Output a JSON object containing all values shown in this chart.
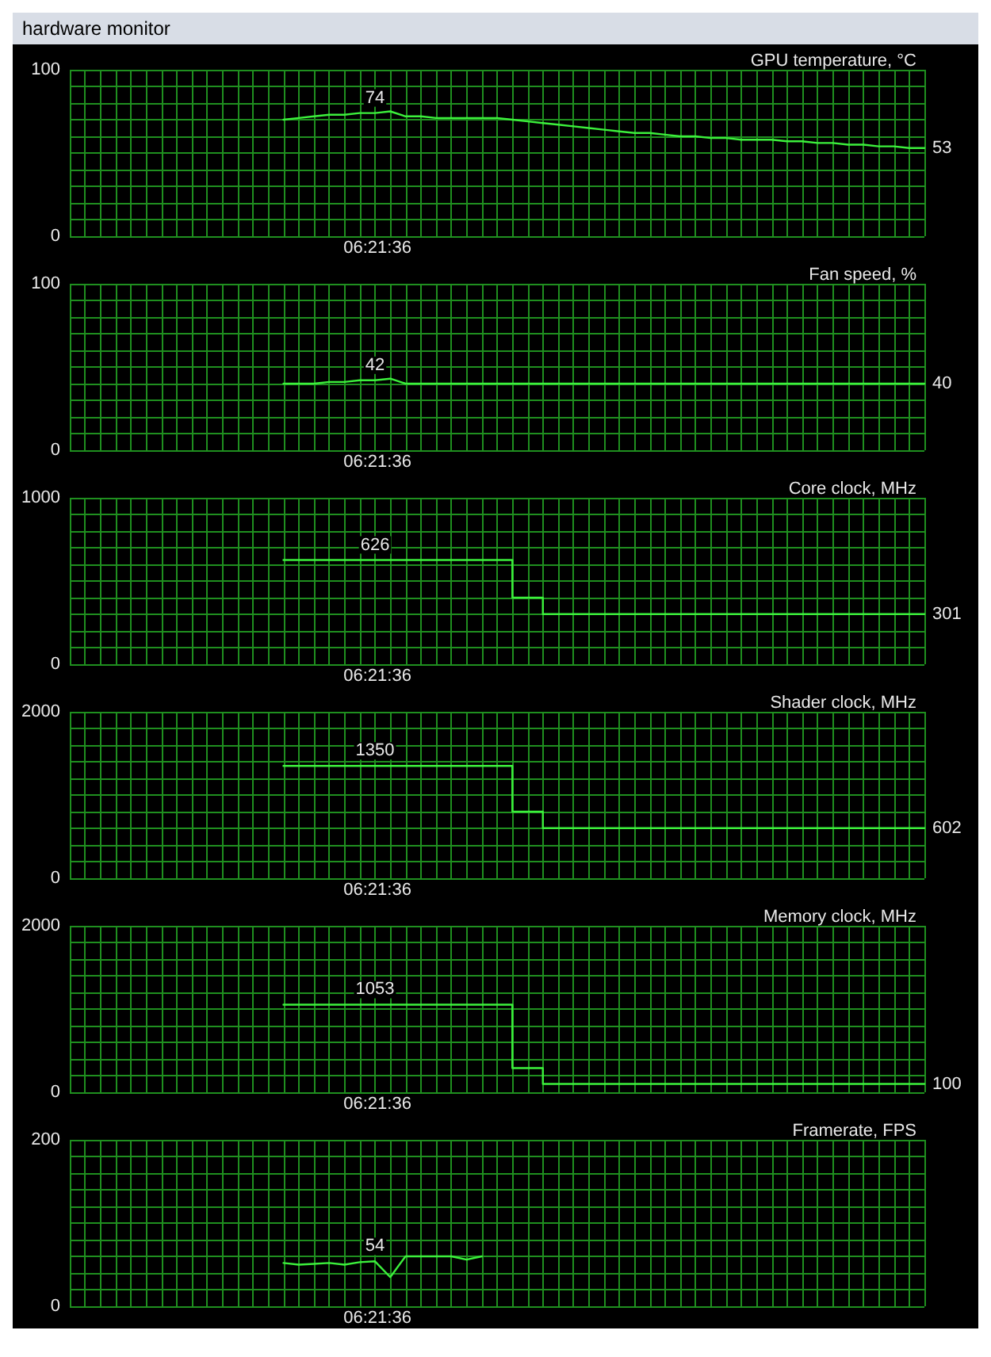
{
  "chart_data": [
    {
      "type": "line",
      "title": "GPU temperature, °C",
      "xlabel": "06:21:36",
      "annotations": [
        "hardware monitor"
      ],
      "color": "#3cf03c",
      "grid": true,
      "ylim": [
        0,
        100
      ],
      "yticks": [
        0,
        {
          "value": 10,
          "label": null
        },
        {
          "value": 20,
          "label": null
        },
        {
          "value": 30,
          "label": null
        },
        {
          "value": 40,
          "label": null
        },
        {
          "value": 50,
          "label": null
        },
        {
          "value": 60,
          "label": null
        },
        {
          "value": 70,
          "label": null
        },
        {
          "value": 80,
          "label": null
        },
        {
          "value": 90,
          "label": null
        },
        100
      ],
      "categories": [
        null,
        null,
        null,
        null,
        null,
        null,
        null,
        null,
        null,
        null,
        null,
        null,
        null,
        null,
        null,
        null,
        null,
        null,
        null,
        null,
        null,
        null,
        null,
        null,
        null,
        null,
        null,
        null,
        null,
        null,
        null,
        null,
        null,
        null,
        null,
        null,
        null,
        null,
        null,
        null,
        null,
        null,
        null,
        null,
        null,
        null,
        null,
        null,
        null,
        null,
        null,
        null,
        null,
        null,
        null,
        null,
        null
      ],
      "values": [
        null,
        null,
        null,
        null,
        null,
        null,
        null,
        null,
        null,
        null,
        null,
        null,
        null,
        null,
        70,
        71,
        72,
        73,
        73,
        74,
        74,
        75,
        72,
        72,
        71,
        71,
        71,
        71,
        71,
        70,
        69,
        68,
        67,
        66,
        65,
        64,
        63,
        62,
        62,
        61,
        60,
        60,
        59,
        59,
        58,
        58,
        58,
        57,
        57,
        56,
        56,
        55,
        55,
        54,
        54,
        53,
        53
      ],
      "value_labels": [
        null,
        null,
        null,
        null,
        null,
        null,
        null,
        null,
        null,
        null,
        null,
        null,
        null,
        null,
        null,
        null,
        null,
        null,
        null,
        null,
        "74",
        null,
        null,
        null,
        null,
        null,
        null,
        null,
        null,
        null,
        null,
        null,
        null,
        null,
        null,
        null,
        null,
        null,
        null,
        null,
        null,
        null,
        null,
        null,
        null,
        null,
        null,
        null,
        null,
        null,
        null,
        null,
        null,
        null,
        null,
        null,
        "53"
      ]
    },
    {
      "type": "line",
      "title": "Fan speed, %",
      "xlabel": "06:21:36",
      "color": "#3cf03c",
      "grid": true,
      "ylim": [
        0,
        100
      ],
      "yticks": [
        0,
        {
          "value": 10,
          "label": null
        },
        {
          "value": 20,
          "label": null
        },
        {
          "value": 30,
          "label": null
        },
        {
          "value": 40,
          "label": null
        },
        {
          "value": 50,
          "label": null
        },
        {
          "value": 60,
          "label": null
        },
        {
          "value": 70,
          "label": null
        },
        {
          "value": 80,
          "label": null
        },
        {
          "value": 90,
          "label": null
        },
        100
      ],
      "categories": [
        null,
        null,
        null,
        null,
        null,
        null,
        null,
        null,
        null,
        null,
        null,
        null,
        null,
        null,
        null,
        null,
        null,
        null,
        null,
        null,
        null,
        null,
        null,
        null,
        null,
        null,
        null,
        null,
        null,
        null,
        null,
        null,
        null,
        null,
        null,
        null,
        null,
        null,
        null,
        null,
        null,
        null,
        null,
        null,
        null,
        null,
        null,
        null,
        null,
        null,
        null,
        null,
        null,
        null,
        null,
        null,
        null
      ],
      "values": [
        null,
        null,
        null,
        null,
        null,
        null,
        null,
        null,
        null,
        null,
        null,
        null,
        null,
        null,
        40,
        40,
        40,
        41,
        41,
        42,
        42,
        43,
        40,
        40,
        40,
        40,
        40,
        40,
        40,
        40,
        40,
        40,
        40,
        40,
        40,
        40,
        40,
        40,
        40,
        40,
        40,
        40,
        40,
        40,
        40,
        40,
        40,
        40,
        40,
        40,
        40,
        40,
        40,
        40,
        40,
        40,
        40
      ],
      "value_labels": [
        null,
        null,
        null,
        null,
        null,
        null,
        null,
        null,
        null,
        null,
        null,
        null,
        null,
        null,
        null,
        null,
        null,
        null,
        null,
        null,
        "42",
        null,
        null,
        null,
        null,
        null,
        null,
        null,
        null,
        null,
        null,
        null,
        null,
        null,
        null,
        null,
        null,
        null,
        null,
        null,
        null,
        null,
        null,
        null,
        null,
        null,
        null,
        null,
        null,
        null,
        null,
        null,
        null,
        null,
        null,
        null,
        "40"
      ]
    },
    {
      "type": "step",
      "title": "Core clock, MHz",
      "xlabel": "06:21:36",
      "color": "#3cf03c",
      "grid": true,
      "ylim": [
        0,
        1000
      ],
      "yticks": [
        0,
        {
          "value": 100,
          "label": null
        },
        {
          "value": 200,
          "label": null
        },
        {
          "value": 300,
          "label": null
        },
        {
          "value": 400,
          "label": null
        },
        {
          "value": 500,
          "label": null
        },
        {
          "value": 600,
          "label": null
        },
        {
          "value": 700,
          "label": null
        },
        {
          "value": 800,
          "label": null
        },
        {
          "value": 900,
          "label": null
        },
        1000
      ],
      "categories": [
        null,
        null,
        null,
        null,
        null,
        null,
        null,
        null,
        null,
        null,
        null,
        null,
        null,
        null,
        null,
        null,
        null,
        null,
        null,
        null,
        null,
        null,
        null,
        null,
        null,
        null,
        null,
        null,
        null,
        null,
        null,
        null,
        null,
        null,
        null,
        null,
        null,
        null,
        null,
        null,
        null,
        null,
        null,
        null,
        null,
        null,
        null,
        null,
        null,
        null,
        null,
        null,
        null,
        null,
        null,
        null,
        null
      ],
      "values": [
        null,
        null,
        null,
        null,
        null,
        null,
        null,
        null,
        null,
        null,
        null,
        null,
        null,
        null,
        626,
        626,
        626,
        626,
        626,
        626,
        626,
        626,
        626,
        626,
        626,
        626,
        626,
        626,
        626,
        400,
        400,
        301,
        301,
        301,
        301,
        301,
        301,
        301,
        301,
        301,
        301,
        301,
        301,
        301,
        301,
        301,
        301,
        301,
        301,
        301,
        301,
        301,
        301,
        301,
        301,
        301,
        301
      ],
      "value_labels": [
        null,
        null,
        null,
        null,
        null,
        null,
        null,
        null,
        null,
        null,
        null,
        null,
        null,
        null,
        null,
        null,
        null,
        null,
        null,
        null,
        "626",
        null,
        null,
        null,
        null,
        null,
        null,
        null,
        null,
        null,
        null,
        null,
        null,
        null,
        null,
        null,
        null,
        null,
        null,
        null,
        null,
        null,
        null,
        null,
        null,
        null,
        null,
        null,
        null,
        null,
        null,
        null,
        null,
        null,
        null,
        null,
        "301"
      ]
    },
    {
      "type": "step",
      "title": "Shader clock, MHz",
      "xlabel": "06:21:36",
      "color": "#3cf03c",
      "grid": true,
      "ylim": [
        0,
        2000
      ],
      "yticks": [
        0,
        {
          "value": 200,
          "label": null
        },
        {
          "value": 400,
          "label": null
        },
        {
          "value": 600,
          "label": null
        },
        {
          "value": 800,
          "label": null
        },
        {
          "value": 1000,
          "label": null
        },
        {
          "value": 1200,
          "label": null
        },
        {
          "value": 1400,
          "label": null
        },
        {
          "value": 1600,
          "label": null
        },
        {
          "value": 1800,
          "label": null
        },
        2000
      ],
      "categories": [
        null,
        null,
        null,
        null,
        null,
        null,
        null,
        null,
        null,
        null,
        null,
        null,
        null,
        null,
        null,
        null,
        null,
        null,
        null,
        null,
        null,
        null,
        null,
        null,
        null,
        null,
        null,
        null,
        null,
        null,
        null,
        null,
        null,
        null,
        null,
        null,
        null,
        null,
        null,
        null,
        null,
        null,
        null,
        null,
        null,
        null,
        null,
        null,
        null,
        null,
        null,
        null,
        null,
        null,
        null,
        null,
        null
      ],
      "values": [
        null,
        null,
        null,
        null,
        null,
        null,
        null,
        null,
        null,
        null,
        null,
        null,
        null,
        null,
        1350,
        1350,
        1350,
        1350,
        1350,
        1350,
        1350,
        1350,
        1350,
        1350,
        1350,
        1350,
        1350,
        1350,
        1350,
        800,
        800,
        602,
        602,
        602,
        602,
        602,
        602,
        602,
        602,
        602,
        602,
        602,
        602,
        602,
        602,
        602,
        602,
        602,
        602,
        602,
        602,
        602,
        602,
        602,
        602,
        602,
        602
      ],
      "value_labels": [
        null,
        null,
        null,
        null,
        null,
        null,
        null,
        null,
        null,
        null,
        null,
        null,
        null,
        null,
        null,
        null,
        null,
        null,
        null,
        null,
        "1350",
        null,
        null,
        null,
        null,
        null,
        null,
        null,
        null,
        null,
        null,
        null,
        null,
        null,
        null,
        null,
        null,
        null,
        null,
        null,
        null,
        null,
        null,
        null,
        null,
        null,
        null,
        null,
        null,
        null,
        null,
        null,
        null,
        null,
        null,
        null,
        "602"
      ]
    },
    {
      "type": "step",
      "title": "Memory clock, MHz",
      "xlabel": "06:21:36",
      "color": "#3cf03c",
      "grid": true,
      "ylim": [
        0,
        2000
      ],
      "yticks": [
        0,
        {
          "value": 200,
          "label": null
        },
        {
          "value": 400,
          "label": null
        },
        {
          "value": 600,
          "label": null
        },
        {
          "value": 800,
          "label": null
        },
        {
          "value": 1000,
          "label": null
        },
        {
          "value": 1200,
          "label": null
        },
        {
          "value": 1400,
          "label": null
        },
        {
          "value": 1600,
          "label": null
        },
        {
          "value": 1800,
          "label": null
        },
        2000
      ],
      "categories": [
        null,
        null,
        null,
        null,
        null,
        null,
        null,
        null,
        null,
        null,
        null,
        null,
        null,
        null,
        null,
        null,
        null,
        null,
        null,
        null,
        null,
        null,
        null,
        null,
        null,
        null,
        null,
        null,
        null,
        null,
        null,
        null,
        null,
        null,
        null,
        null,
        null,
        null,
        null,
        null,
        null,
        null,
        null,
        null,
        null,
        null,
        null,
        null,
        null,
        null,
        null,
        null,
        null,
        null,
        null,
        null,
        null
      ],
      "values": [
        null,
        null,
        null,
        null,
        null,
        null,
        null,
        null,
        null,
        null,
        null,
        null,
        null,
        null,
        1053,
        1053,
        1053,
        1053,
        1053,
        1053,
        1053,
        1053,
        1053,
        1053,
        1053,
        1053,
        1053,
        1053,
        1053,
        290,
        290,
        100,
        100,
        100,
        100,
        100,
        100,
        100,
        100,
        100,
        100,
        100,
        100,
        100,
        100,
        100,
        100,
        100,
        100,
        100,
        100,
        100,
        100,
        100,
        100,
        100,
        100
      ],
      "value_labels": [
        null,
        null,
        null,
        null,
        null,
        null,
        null,
        null,
        null,
        null,
        null,
        null,
        null,
        null,
        null,
        null,
        null,
        null,
        null,
        null,
        "1053",
        null,
        null,
        null,
        null,
        null,
        null,
        null,
        null,
        null,
        null,
        null,
        null,
        null,
        null,
        null,
        null,
        null,
        null,
        null,
        null,
        null,
        null,
        null,
        null,
        null,
        null,
        null,
        null,
        null,
        null,
        null,
        null,
        null,
        null,
        null,
        "100"
      ]
    },
    {
      "type": "line",
      "title": "Framerate, FPS",
      "xlabel": "06:21:36",
      "color": "#3cf03c",
      "grid": true,
      "ylim": [
        0,
        200
      ],
      "yticks": [
        0,
        {
          "value": 20,
          "label": null
        },
        {
          "value": 40,
          "label": null
        },
        {
          "value": 60,
          "label": null
        },
        {
          "value": 80,
          "label": null
        },
        {
          "value": 100,
          "label": null
        },
        {
          "value": 120,
          "label": null
        },
        {
          "value": 140,
          "label": null
        },
        {
          "value": 160,
          "label": null
        },
        {
          "value": 180,
          "label": null
        },
        200
      ],
      "categories": [
        null,
        null,
        null,
        null,
        null,
        null,
        null,
        null,
        null,
        null,
        null,
        null,
        null,
        null,
        null,
        null,
        null,
        null,
        null,
        null,
        null,
        null,
        null,
        null,
        null,
        null,
        null,
        null,
        null,
        null,
        null,
        null,
        null,
        null,
        null,
        null,
        null,
        null,
        null,
        null,
        null,
        null,
        null,
        null,
        null,
        null,
        null,
        null,
        null,
        null,
        null,
        null,
        null,
        null,
        null,
        null,
        null
      ],
      "values": [
        null,
        null,
        null,
        null,
        null,
        null,
        null,
        null,
        null,
        null,
        null,
        null,
        null,
        null,
        52,
        50,
        51,
        52,
        50,
        53,
        54,
        35,
        60,
        60,
        60,
        60,
        56,
        60,
        null,
        null,
        null,
        null,
        null,
        null,
        null,
        null,
        null,
        null,
        null,
        null,
        null,
        null,
        null,
        null,
        null,
        null,
        null,
        null,
        null,
        null,
        null,
        null,
        null,
        null,
        null,
        null,
        null
      ],
      "value_labels": [
        null,
        null,
        null,
        null,
        null,
        null,
        null,
        null,
        null,
        null,
        null,
        null,
        null,
        null,
        null,
        null,
        null,
        null,
        null,
        null,
        "54",
        null,
        null,
        null,
        null,
        null,
        null,
        null,
        null,
        null,
        null,
        null,
        null,
        null,
        null,
        null,
        null,
        null,
        null,
        null,
        null,
        null,
        null,
        null,
        null,
        null,
        null,
        null,
        null,
        null,
        null,
        null,
        null,
        null,
        null,
        null,
        null
      ]
    }
  ]
}
